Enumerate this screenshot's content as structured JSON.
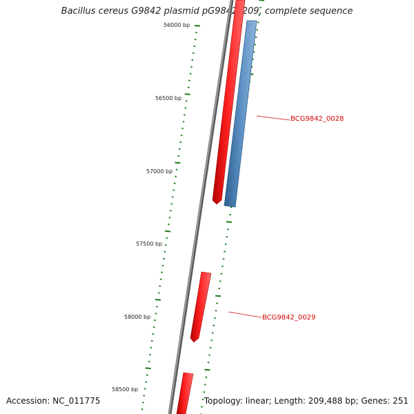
{
  "title": "Bacillus cereus G9842 plasmid pG9842_209, complete sequence",
  "accession": "Accession: NC_011775",
  "summary": "Topology: linear; Length: 209,488 bp; Genes: 251",
  "colors": {
    "backbone": "#808080",
    "forward_gene": "#ff0000",
    "reverse_gene": "#5b8fc3",
    "ruler_tick": "#1a7a1a",
    "gene_label": "#d40000"
  },
  "scale_labels": [
    "56000 bp",
    "56500 bp",
    "57000 bp",
    "57500 bp",
    "58000 bp",
    "58500 bp"
  ],
  "gene_labels": [
    "BCG9842_0028",
    "BCG9842_0029"
  ]
}
